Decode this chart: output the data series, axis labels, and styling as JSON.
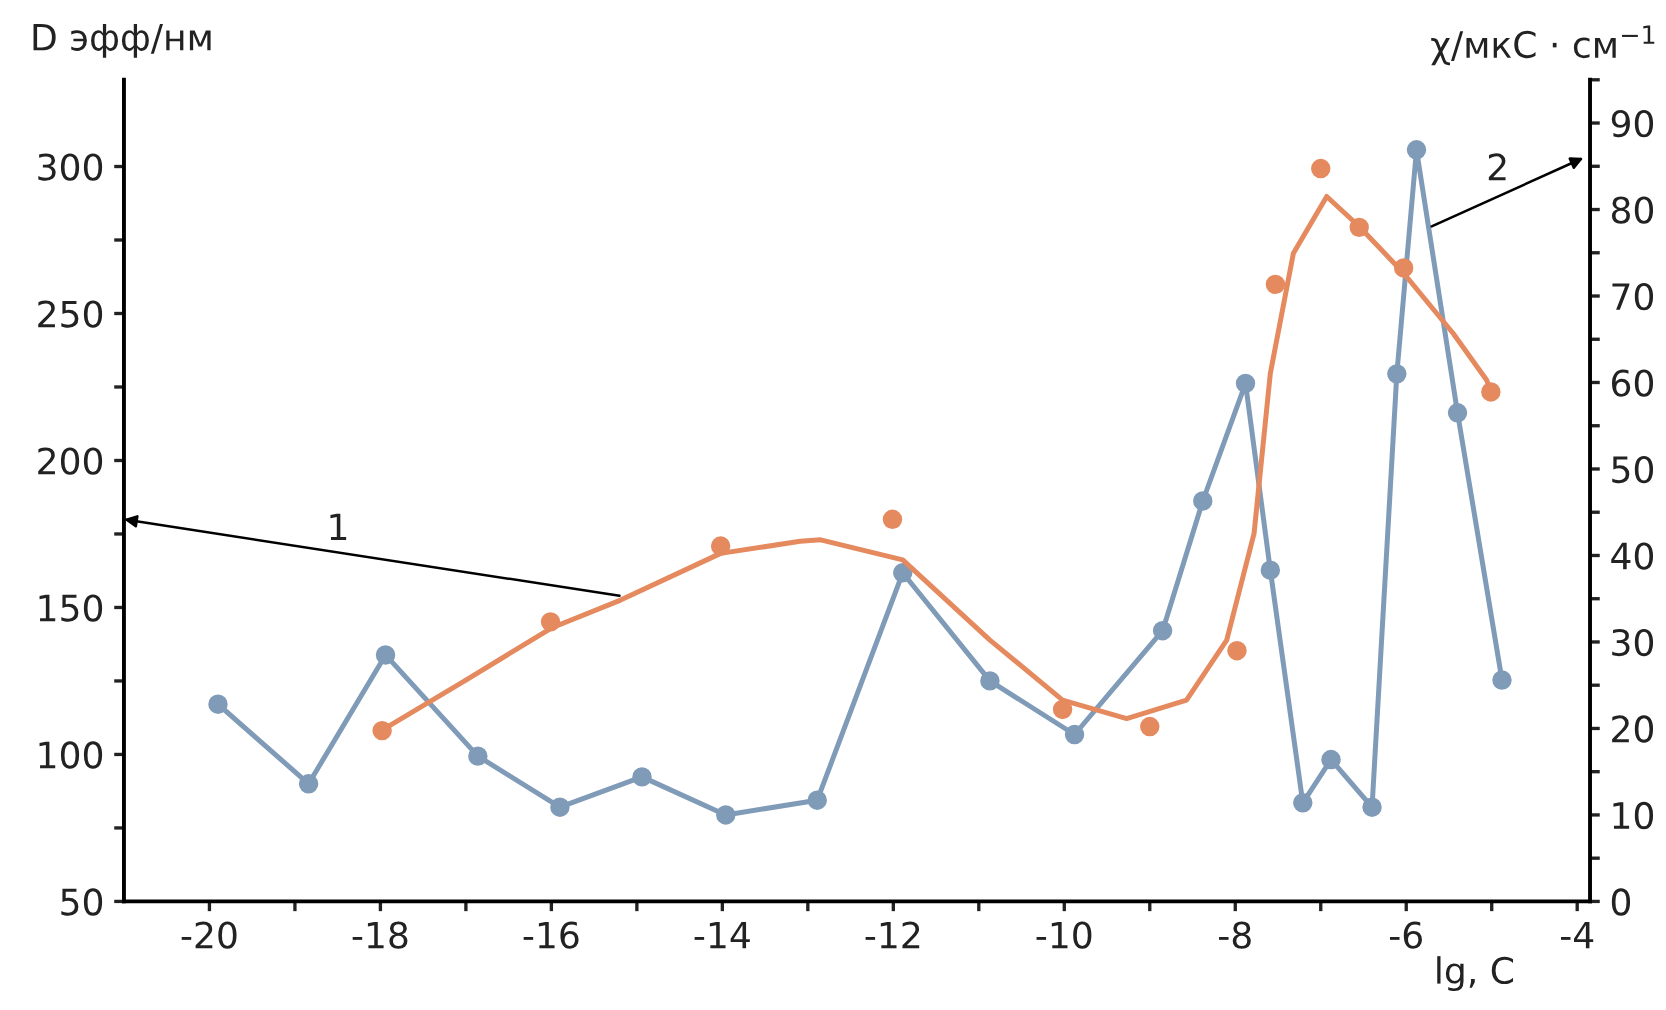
{
  "chart_data": {
    "type": "line",
    "xlabel": "lg, C",
    "ylabel": "D эфф/нм",
    "y2label": "χ/мкС · см$^{−1}$",
    "xlim": [
      -21,
      -3.85
    ],
    "ylim": [
      50,
      329.5
    ],
    "y2lim": [
      0,
      95
    ],
    "xticks": [
      -20,
      {
        "value": -19,
        "label": null
      },
      -18,
      {
        "value": -17,
        "label": null
      },
      -16,
      {
        "value": -15,
        "label": null
      },
      -14,
      {
        "value": -13,
        "label": null
      },
      -12,
      {
        "value": -11,
        "label": null
      },
      -10,
      {
        "value": -9,
        "label": null
      },
      -8,
      {
        "value": -7,
        "label": null
      },
      -6,
      {
        "value": -5,
        "label": null
      },
      -4
    ],
    "yticks": [
      50,
      {
        "value": 75,
        "label": null
      },
      100,
      {
        "value": 125,
        "label": null
      },
      150,
      {
        "value": 175,
        "label": null
      },
      200,
      {
        "value": 225,
        "label": null
      },
      250,
      {
        "value": 275,
        "label": null
      },
      300
    ],
    "y2ticks": [
      0,
      {
        "value": 5,
        "label": null
      },
      10,
      {
        "value": 15,
        "label": null
      },
      20,
      {
        "value": 25,
        "label": null
      },
      30,
      {
        "value": 35,
        "label": null
      },
      40,
      {
        "value": 45,
        "label": null
      },
      50,
      {
        "value": 55,
        "label": null
      },
      60,
      {
        "value": 65,
        "label": null
      },
      70,
      {
        "value": 75,
        "label": null
      },
      80,
      {
        "value": 85,
        "label": null
      },
      90,
      {
        "value": 95,
        "label": null
      }
    ],
    "grid": false,
    "legend": false,
    "series": [
      {
        "color": "#7f9bb8",
        "marker": "circle",
        "axis": "y2",
        "x": [
          -19.9,
          -18.84,
          -17.94,
          -16.86,
          -15.9,
          -14.94,
          -13.96,
          -12.89,
          -11.89,
          -10.87,
          -9.88,
          -8.85,
          -8.38,
          -7.88,
          -7.59,
          -7.21,
          -6.88,
          -6.4,
          -6.11,
          -5.88,
          -5.4,
          -4.88
        ],
        "values": [
          22.8,
          13.6,
          28.5,
          16.8,
          10.9,
          14.4,
          10.0,
          11.7,
          38.0,
          25.5,
          19.3,
          31.3,
          46.3,
          59.9,
          38.3,
          11.4,
          16.4,
          10.9,
          61.0,
          86.9,
          56.5,
          25.6
        ]
      },
      {
        "type": "scatter",
        "color": "#e58a5f",
        "x": [
          -17.98,
          -16.01,
          -14.02,
          -12.01,
          -10.02,
          -9.0,
          -7.98,
          -7.53,
          -7.0,
          -6.55,
          -6.03,
          -5.01
        ],
        "values": [
          108.1,
          145.1,
          170.9,
          180.0,
          115.3,
          109.5,
          135.3,
          259.9,
          299.3,
          279.3,
          265.5,
          223.3
        ]
      },
      {
        "type": "line",
        "color": "#e58a5f",
        "marker": "none",
        "x": [
          -17.98,
          -17.0,
          -16.0,
          -15.19,
          -14.02,
          -13.09,
          -12.85,
          -11.89,
          -10.87,
          -10.02,
          -9.27,
          -8.57,
          -8.1,
          -7.78,
          -7.59,
          -7.32,
          -6.93,
          -6.55,
          -6.03,
          -5.45,
          -5.06,
          -5.01
        ],
        "values": [
          108.3,
          125.3,
          143.0,
          152.5,
          168.4,
          172.5,
          173.0,
          166.2,
          138.9,
          118.5,
          112.2,
          118.5,
          138.9,
          175.2,
          229.6,
          270.5,
          289.8,
          279.6,
          263.7,
          243.2,
          227.4,
          223.3
        ]
      }
    ],
    "annotations": [
      "1",
      "2"
    ]
  }
}
